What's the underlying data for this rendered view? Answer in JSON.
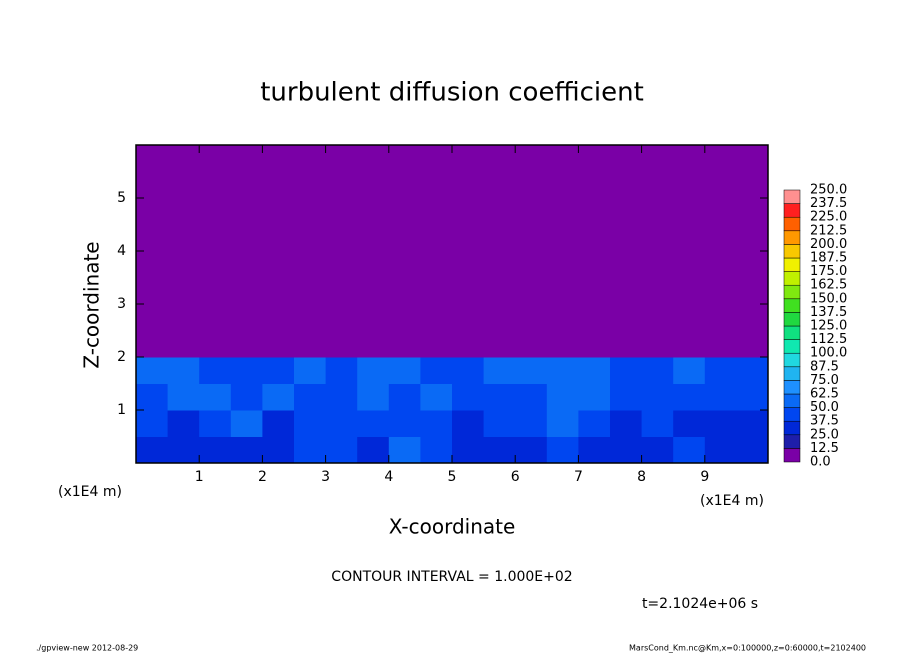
{
  "chart_data": {
    "type": "heatmap",
    "title": "turbulent diffusion coefficient",
    "xlabel": "X-coordinate",
    "ylabel": "Z-coordinate",
    "xunit": "(x1E4 m)",
    "yunit": "(x1E4 m)",
    "annotation": "CONTOUR INTERVAL = 1.000E+02",
    "time": "t=2.1024e+06 s",
    "footer_left": "./gpview-new  2012-08-29",
    "footer_right": "MarsCond_Km.nc@Km,x=0:100000,z=0:60000,t=2102400",
    "xlim": [
      0,
      10
    ],
    "ylim": [
      0,
      6
    ],
    "xticks": [
      1,
      2,
      3,
      4,
      5,
      6,
      7,
      8,
      9
    ],
    "yticks": [
      1,
      2,
      3,
      4,
      5
    ],
    "x": [
      0.25,
      0.75,
      1.25,
      1.75,
      2.25,
      2.75,
      3.25,
      3.75,
      4.25,
      4.75,
      5.25,
      5.75,
      6.25,
      6.75,
      7.25,
      7.75,
      8.25,
      8.75,
      9.25,
      9.75
    ],
    "y": [
      0.25,
      0.75,
      1.25,
      1.75,
      2.25,
      2.75,
      3.25,
      3.75,
      4.25,
      4.75,
      5.25,
      5.75
    ],
    "z": [
      [
        35,
        30,
        28,
        32,
        30,
        45,
        38,
        30,
        55,
        40,
        32,
        30,
        35,
        40,
        30,
        28,
        30,
        45,
        30,
        28
      ],
      [
        40,
        35,
        45,
        50,
        35,
        40,
        45,
        38,
        45,
        40,
        35,
        45,
        40,
        50,
        38,
        35,
        40,
        35,
        32,
        30
      ],
      [
        45,
        50,
        55,
        40,
        50,
        38,
        42,
        55,
        45,
        50,
        48,
        42,
        38,
        55,
        50,
        40,
        38,
        42,
        45,
        40
      ],
      [
        50,
        55,
        45,
        42,
        48,
        52,
        45,
        50,
        55,
        48,
        45,
        50,
        52,
        60,
        55,
        48,
        45,
        50,
        48,
        45
      ],
      [
        0,
        0,
        0,
        0,
        0,
        0,
        0,
        0,
        0,
        0,
        0,
        0,
        0,
        0,
        0,
        0,
        0,
        0,
        0,
        0
      ],
      [
        0,
        0,
        0,
        0,
        0,
        0,
        0,
        0,
        0,
        0,
        0,
        0,
        0,
        0,
        0,
        0,
        0,
        0,
        0,
        0
      ],
      [
        0,
        0,
        0,
        0,
        0,
        0,
        0,
        0,
        0,
        0,
        0,
        0,
        0,
        0,
        0,
        0,
        0,
        0,
        0,
        0
      ],
      [
        0,
        0,
        0,
        0,
        0,
        0,
        0,
        0,
        0,
        0,
        0,
        0,
        0,
        0,
        0,
        0,
        0,
        0,
        0,
        0
      ],
      [
        0,
        0,
        0,
        0,
        0,
        0,
        0,
        0,
        0,
        0,
        0,
        0,
        0,
        0,
        0,
        0,
        0,
        0,
        0,
        0
      ],
      [
        0,
        0,
        0,
        0,
        0,
        0,
        0,
        0,
        0,
        0,
        0,
        0,
        0,
        0,
        0,
        0,
        0,
        0,
        0,
        0
      ],
      [
        0,
        0,
        0,
        0,
        0,
        0,
        0,
        0,
        0,
        0,
        0,
        0,
        0,
        0,
        0,
        0,
        0,
        0,
        0,
        0
      ],
      [
        0,
        0,
        0,
        0,
        0,
        0,
        0,
        0,
        0,
        0,
        0,
        0,
        0,
        0,
        0,
        0,
        0,
        0,
        0,
        0
      ]
    ],
    "levels": [
      {
        "value": 0,
        "label": "0.0"
      },
      12.5,
      {
        "value": 25,
        "label": "25.0"
      },
      37.5,
      {
        "value": 50,
        "label": "50.0"
      },
      62.5,
      {
        "value": 75,
        "label": "75.0"
      },
      87.5,
      {
        "value": 100,
        "label": "100.0"
      },
      112.5,
      {
        "value": 125,
        "label": "125.0"
      },
      137.5,
      {
        "value": 150,
        "label": "150.0"
      },
      162.5,
      {
        "value": 175,
        "label": "175.0"
      },
      187.5,
      {
        "value": 200,
        "label": "200.0"
      },
      212.5,
      {
        "value": 225,
        "label": "225.0"
      },
      237.5,
      {
        "value": 250,
        "label": "250.0"
      }
    ],
    "colors": [
      "#7a00a6",
      "#1e1eaa",
      "#0028d8",
      "#0046f0",
      "#0a6af5",
      "#1e90ff",
      "#20b4f0",
      "#20d8e0",
      "#10e8b0",
      "#10e080",
      "#20d840",
      "#40e020",
      "#80e810",
      "#c0f000",
      "#f0f000",
      "#f8c800",
      "#ff9800",
      "#ff6000",
      "#ff2020",
      "#ff9090"
    ]
  }
}
